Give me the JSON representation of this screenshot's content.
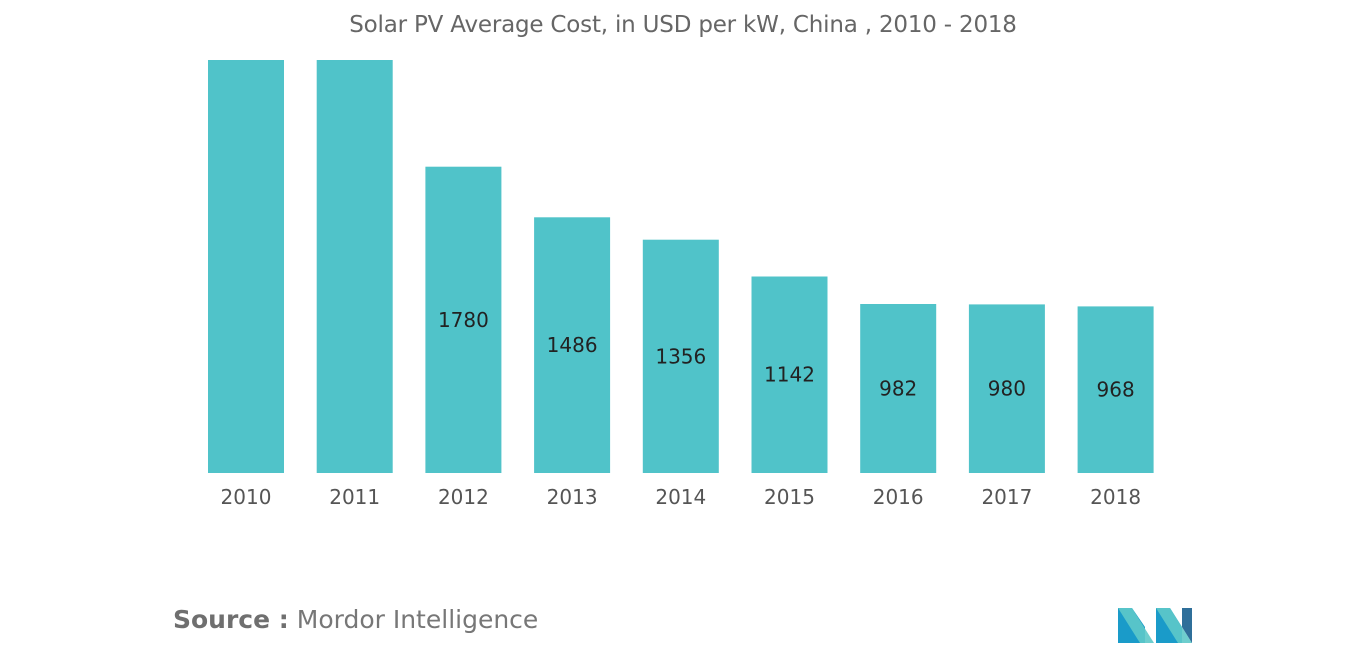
{
  "title": "Solar PV Average Cost, in USD per kW, China , 2010 - 2018",
  "source": {
    "label": "Source :",
    "value": "Mordor Intelligence"
  },
  "logo": {
    "icon": "mordor-intelligence-logo-icon",
    "colors": [
      "#1a9bc9",
      "#5ec9c9",
      "#2f6f9a"
    ]
  },
  "chart_data": {
    "type": "bar",
    "title": "Solar PV Average Cost, in USD per kW, China , 2010 - 2018",
    "xlabel": "",
    "ylabel": "",
    "categories": [
      "2010",
      "2011",
      "2012",
      "2013",
      "2014",
      "2015",
      "2016",
      "2017",
      "2018"
    ],
    "values": [
      2400,
      2400,
      1780,
      1486,
      1356,
      1142,
      982,
      980,
      968
    ],
    "data_labels": [
      "",
      "",
      "1780",
      "1486",
      "1356",
      "1142",
      "982",
      "980",
      "968"
    ],
    "bar_color": "#50c3c9",
    "ylim": [
      0,
      2400
    ],
    "grid": false,
    "legend": "none"
  }
}
